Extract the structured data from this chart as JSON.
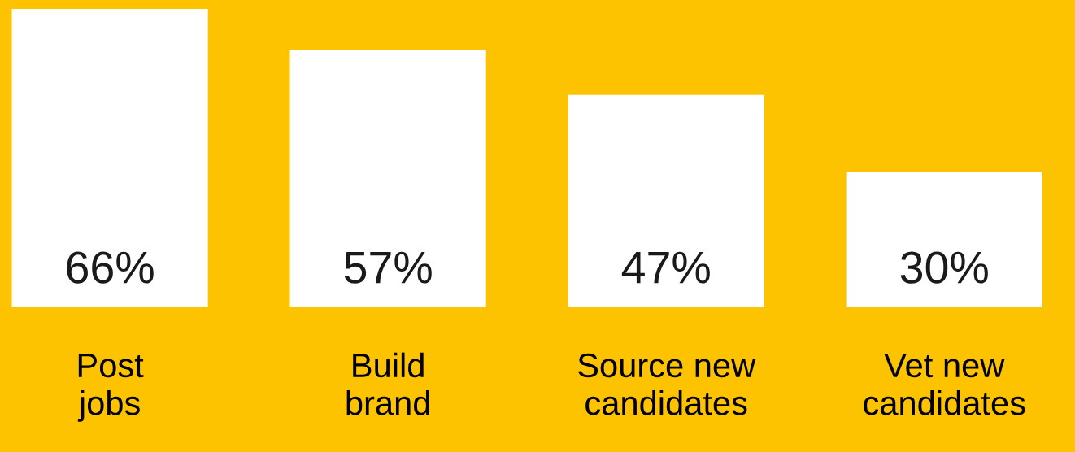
{
  "chart_data": {
    "type": "bar",
    "categories": [
      "Post\njobs",
      "Build\nbrand",
      "Source new\ncandidates",
      "Vet new\ncandidates"
    ],
    "values": [
      66,
      57,
      47,
      30
    ],
    "value_labels": [
      "66%",
      "57%",
      "47%",
      "30%"
    ],
    "color": "#ffffff"
  }
}
